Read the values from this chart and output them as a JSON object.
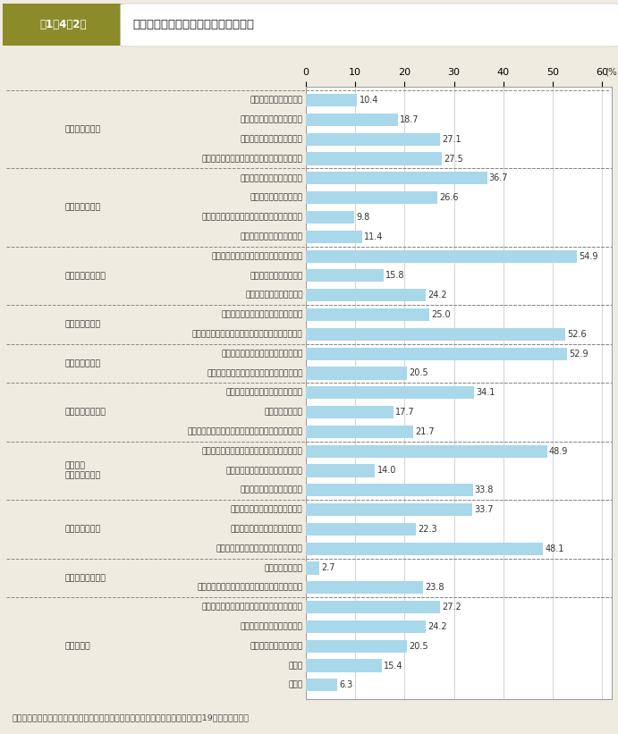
{
  "header_label": "第1－4－2図",
  "header_title": "離れて生活を始めるに当たっての困難",
  "footnote": "（備考）　内閣府「配偶者からの暴力の被害者の自立支援等に関する調査」（平成19年）より作成。",
  "xlim_max": 62,
  "xticks": [
    0,
    10,
    20,
    30,
    40,
    50,
    60
  ],
  "bar_color": "#A8D8EA",
  "background_color": "#F0EBE0",
  "chart_bg": "#FFFFFF",
  "grid_color": "#CCCCCC",
  "header_box_color": "#8B8B2A",
  "header_box_right_color": "#F5F5F5",
  "text_color": "#333333",
  "categories": [
    "公的施設に入所できない",
    "民間賃貸住宅に入居できない",
    "公的賃貸住宅に入居できない",
    "民間賃貸住宅に入居するための保証人がいない",
    "適当な就職先が見つからない",
    "就職に必要な技能がない",
    "どのように就職活動をすればよいかわからない",
    "就職に必要な保証人がいない",
    "当面の生活をするために必要なお金がない",
    "生活保護が受けられない",
    "児童扶養手当がもらえない",
    "健康保険や年金などの手続がめんどう",
    "住所を知られないようにするため住民票を移せない",
    "自分の体調や気持ちが回復していない",
    "お金がなくて病院での治療等を受けられない",
    "子どもの就学や保育所に関すること",
    "子どもの問題行動",
    "子どもを相手のもとから取り戻すことや子どもの親権",
    "裁判や調停に時間やエネルギー，お金を要する",
    "保護命令の申し立て手続がめんどう",
    "相手が離婚に応じてくれない",
    "相手からの追跡や嫌がらせがある",
    "相手が子どもとの面会を要求する",
    "相手が怖くて家に荷物を取りに行けない",
    "母国語が通じない",
    "公的機関等の支援者から心ない言葉をかけられた",
    "どうすれば自立して生活できるのか情報がない",
    "相談できる人が周りにいない",
    "新しい環境になじめない",
    "その他",
    "無回答"
  ],
  "values": [
    10.4,
    18.7,
    27.1,
    27.5,
    36.7,
    26.6,
    9.8,
    11.4,
    54.9,
    15.8,
    24.2,
    25.0,
    52.6,
    52.9,
    20.5,
    34.1,
    17.7,
    21.7,
    48.9,
    14.0,
    33.8,
    33.7,
    22.3,
    48.1,
    2.7,
    23.8,
    27.2,
    24.2,
    20.5,
    15.4,
    6.3
  ],
  "group_labels": [
    "【住居のこと】",
    "【就労のこと】",
    "【経済的なこと】",
    "【手続のこと】",
    "【健康のこと】",
    "【子どものこと】",
    "【裁判・\n　調停のこと】",
    "【相手のこと】",
    "【支援者のこと】",
    "【その他】"
  ],
  "group_start_rows": [
    0,
    4,
    8,
    11,
    13,
    15,
    18,
    21,
    24,
    26
  ],
  "group_end_rows": [
    3,
    7,
    10,
    12,
    14,
    17,
    20,
    23,
    25,
    30
  ],
  "divider_before_rows": [
    4,
    8,
    11,
    13,
    15,
    18,
    21,
    24,
    26
  ]
}
